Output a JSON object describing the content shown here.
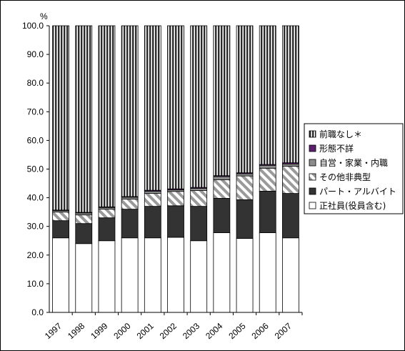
{
  "chart_data": {
    "type": "bar",
    "stacked": true,
    "title": "",
    "xlabel": "",
    "ylabel": "%",
    "ylim": [
      0,
      100
    ],
    "yticks": [
      "0.0",
      "10.0",
      "20.0",
      "30.0",
      "40.0",
      "50.0",
      "60.0",
      "70.0",
      "80.0",
      "90.0",
      "100.0"
    ],
    "categories": [
      "1997",
      "1998",
      "1999",
      "2000",
      "2001",
      "2002",
      "2003",
      "2004",
      "2005",
      "2006",
      "2007"
    ],
    "legend_placement": "right",
    "series": [
      {
        "name": "正社員(役員含む)",
        "pattern": "white",
        "values": [
          26,
          24,
          25,
          26,
          26,
          26.2,
          25,
          27.8,
          25.8,
          27.8,
          26
        ]
      },
      {
        "name": "パート・アルバイト",
        "pattern": "dark",
        "values": [
          6,
          7,
          8,
          10,
          11,
          11,
          12,
          12,
          13.5,
          14.5,
          15.5
        ]
      },
      {
        "name": "その他非典型",
        "pattern": "diagonal",
        "values": [
          3,
          3,
          3,
          3.5,
          4.5,
          5,
          5.5,
          6.5,
          8.3,
          8,
          9.5
        ]
      },
      {
        "name": "自営・家業・内職",
        "pattern": "gray",
        "values": [
          0.5,
          0.7,
          0.6,
          0.7,
          0.8,
          0.6,
          0.8,
          1.1,
          0.8,
          1.0,
          0.8
        ]
      },
      {
        "name": "形態不詳",
        "pattern": "purple",
        "values": [
          0.2,
          0.2,
          0.2,
          0.2,
          0.3,
          0.3,
          0.3,
          0.3,
          0.3,
          0.3,
          0.4
        ]
      },
      {
        "name": "前職なし＊",
        "pattern": "vertical",
        "values": [
          64.3,
          65.1,
          63.2,
          59.6,
          57.4,
          56.9,
          56.4,
          52.3,
          51.3,
          48.4,
          47.8
        ]
      }
    ],
    "grid": false
  }
}
